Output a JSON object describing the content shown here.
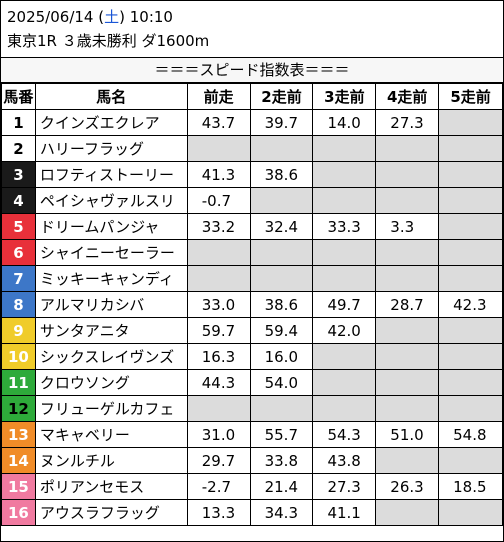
{
  "header": {
    "date": "2025/06/14",
    "weekday_open": " (",
    "weekday": "土",
    "weekday_close": ")",
    "time": " 10:10",
    "race": "東京1R ３歳未勝利 ダ1600m"
  },
  "table_title": "＝＝＝スピード指数表＝＝＝",
  "columns": [
    "馬番",
    "馬名",
    "前走",
    "2走前",
    "3走前",
    "4走前",
    "5走前"
  ],
  "colors": {
    "frame1": "#ffffff",
    "frame2": "#ffffff",
    "frame3": "#1a1a1a",
    "frame4": "#1a1a1a",
    "frame5": "#e8303a",
    "frame6": "#e8303a",
    "frame7": "#3d77c8",
    "frame8": "#3d77c8",
    "frame9": "#f0cc2a",
    "frame10": "#f0cc2a",
    "frame11": "#2eaa3a",
    "frame12": "#2eaa3a",
    "frame13": "#f08c28",
    "frame14": "#f08c28",
    "frame15": "#f07aa0",
    "frame16": "#f07aa0",
    "gray_cell": "#dcdcdc"
  },
  "rows": [
    {
      "no": "1",
      "name": "クインズエクレア",
      "v": [
        "43.7",
        "39.7",
        "14.0",
        "27.3",
        ""
      ]
    },
    {
      "no": "2",
      "name": "ハリーフラッグ",
      "v": [
        "",
        "",
        "",
        "",
        ""
      ]
    },
    {
      "no": "3",
      "name": "ロフティストーリー",
      "v": [
        "41.3",
        "38.6",
        "",
        "",
        ""
      ]
    },
    {
      "no": "4",
      "name": "ペイシャヴァルスリ",
      "v": [
        "-0.7",
        "",
        "",
        "",
        ""
      ]
    },
    {
      "no": "5",
      "name": "ドリームパンジャ",
      "v": [
        "33.2",
        "32.4",
        "33.3",
        "3.3",
        ""
      ]
    },
    {
      "no": "6",
      "name": "シャイニーセーラー",
      "v": [
        "",
        "",
        "",
        "",
        ""
      ]
    },
    {
      "no": "7",
      "name": "ミッキーキャンディ",
      "v": [
        "",
        "",
        "",
        "",
        ""
      ]
    },
    {
      "no": "8",
      "name": "アルマリカシバ",
      "v": [
        "33.0",
        "38.6",
        "49.7",
        "28.7",
        "42.3"
      ]
    },
    {
      "no": "9",
      "name": "サンタアニタ",
      "v": [
        "59.7",
        "59.4",
        "42.0",
        "",
        ""
      ]
    },
    {
      "no": "10",
      "name": "シックスレイヴンズ",
      "v": [
        "16.3",
        "16.0",
        "",
        "",
        ""
      ]
    },
    {
      "no": "11",
      "name": "クロウソング",
      "v": [
        "44.3",
        "54.0",
        "",
        "",
        ""
      ]
    },
    {
      "no": "12",
      "name": "フリューゲルカフェ",
      "v": [
        "",
        "",
        "",
        "",
        ""
      ]
    },
    {
      "no": "13",
      "name": "マキャベリー",
      "v": [
        "31.0",
        "55.7",
        "54.3",
        "51.0",
        "54.8"
      ]
    },
    {
      "no": "14",
      "name": "ヌンルチル",
      "v": [
        "29.7",
        "33.8",
        "43.8",
        "",
        ""
      ]
    },
    {
      "no": "15",
      "name": "ポリアンセモス",
      "v": [
        "-2.7",
        "21.4",
        "27.3",
        "26.3",
        "18.5"
      ]
    },
    {
      "no": "16",
      "name": "アウスラフラッグ",
      "v": [
        "13.3",
        "34.3",
        "41.1",
        "",
        ""
      ]
    }
  ]
}
